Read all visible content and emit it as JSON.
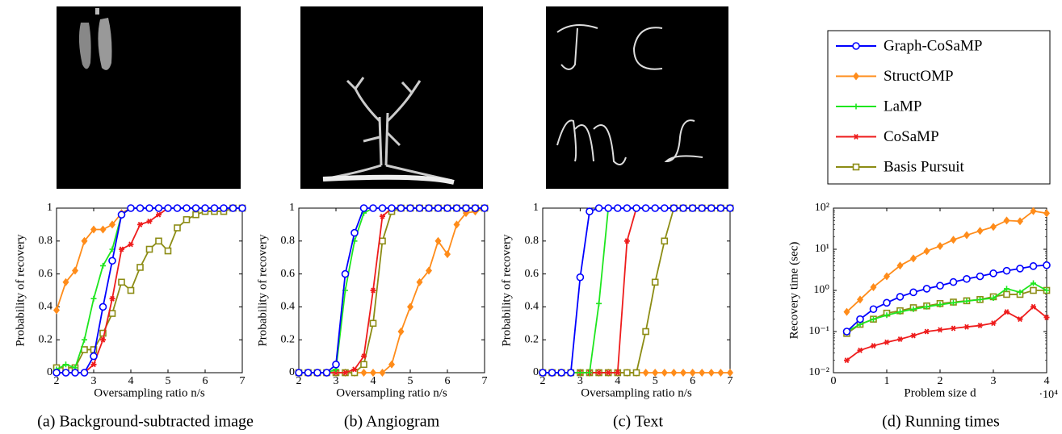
{
  "chart_data": [
    {
      "type": "line",
      "caption": "(a) Background-subtracted image",
      "xlabel": "Oversampling ratio n/s",
      "ylabel": "Probability of recovery",
      "xlim": [
        2,
        7
      ],
      "ylim": [
        0,
        1
      ],
      "xticks": [
        2,
        3,
        4,
        5,
        6,
        7
      ],
      "yticks": [
        0,
        0.2,
        0.4,
        0.6,
        0.8,
        1
      ],
      "x": [
        2,
        2.25,
        2.5,
        2.75,
        3,
        3.25,
        3.5,
        3.75,
        4,
        4.25,
        4.5,
        4.75,
        5,
        5.25,
        5.5,
        5.75,
        6,
        6.25,
        6.5,
        6.75,
        7
      ],
      "series": [
        {
          "name": "Graph-CoSaMP",
          "color": "#0000ff",
          "marker": "circle",
          "values": [
            0,
            0,
            0,
            0,
            0.1,
            0.4,
            0.68,
            0.96,
            1,
            1,
            1,
            1,
            1,
            1,
            1,
            1,
            1,
            1,
            1,
            1,
            1
          ]
        },
        {
          "name": "StructOMP",
          "color": "#ff8c1a",
          "marker": "diamond",
          "values": [
            0.38,
            0.55,
            0.62,
            0.8,
            0.87,
            0.87,
            0.9,
            0.97,
            1,
            1,
            1,
            1,
            1,
            1,
            1,
            1,
            1,
            1,
            1,
            1,
            1
          ]
        },
        {
          "name": "LaMP",
          "color": "#1ee61e",
          "marker": "plus",
          "values": [
            0.02,
            0.05,
            0.03,
            0.2,
            0.45,
            0.65,
            0.75,
            0.96,
            1,
            1,
            1,
            1,
            1,
            1,
            1,
            1,
            1,
            1,
            1,
            1,
            1
          ]
        },
        {
          "name": "CoSaMP",
          "color": "#ee1c1c",
          "marker": "star",
          "values": [
            0,
            0,
            0,
            0,
            0.05,
            0.2,
            0.45,
            0.75,
            0.78,
            0.9,
            0.92,
            0.96,
            1,
            1,
            1,
            1,
            1,
            1,
            1,
            1,
            1
          ]
        },
        {
          "name": "Basis Pursuit",
          "color": "#8c8c14",
          "marker": "square",
          "values": [
            0.03,
            0.03,
            0.03,
            0.14,
            0.14,
            0.24,
            0.36,
            0.55,
            0.5,
            0.64,
            0.75,
            0.8,
            0.74,
            0.88,
            0.93,
            0.96,
            0.98,
            0.98,
            0.98,
            1,
            1
          ]
        }
      ]
    },
    {
      "type": "line",
      "caption": "(b) Angiogram",
      "xlabel": "Oversampling ratio n/s",
      "ylabel": "Probability of recovery",
      "xlim": [
        2,
        7
      ],
      "ylim": [
        0,
        1
      ],
      "xticks": [
        2,
        3,
        4,
        5,
        6,
        7
      ],
      "yticks": [
        0,
        0.2,
        0.4,
        0.6,
        0.8,
        1
      ],
      "x": [
        2,
        2.25,
        2.5,
        2.75,
        3,
        3.25,
        3.5,
        3.75,
        4,
        4.25,
        4.5,
        4.75,
        5,
        5.25,
        5.5,
        5.75,
        6,
        6.25,
        6.5,
        6.75,
        7
      ],
      "series": [
        {
          "name": "Graph-CoSaMP",
          "color": "#0000ff",
          "marker": "circle",
          "values": [
            0,
            0,
            0,
            0,
            0.05,
            0.6,
            0.85,
            1,
            1,
            1,
            1,
            1,
            1,
            1,
            1,
            1,
            1,
            1,
            1,
            1,
            1
          ]
        },
        {
          "name": "StructOMP",
          "color": "#ff8c1a",
          "marker": "diamond",
          "values": [
            0,
            0,
            0,
            0,
            0,
            0,
            0,
            0,
            0,
            0,
            0.05,
            0.25,
            0.4,
            0.55,
            0.62,
            0.8,
            0.72,
            0.9,
            0.97,
            0.98,
            1
          ]
        },
        {
          "name": "LaMP",
          "color": "#1ee61e",
          "marker": "plus",
          "values": [
            0,
            0,
            0,
            0,
            0.02,
            0.5,
            0.8,
            0.97,
            1,
            1,
            1,
            1,
            1,
            1,
            1,
            1,
            1,
            1,
            1,
            1,
            1
          ]
        },
        {
          "name": "CoSaMP",
          "color": "#ee1c1c",
          "marker": "star",
          "values": [
            0,
            0,
            0,
            0,
            0,
            0,
            0.02,
            0.1,
            0.5,
            0.95,
            1,
            1,
            1,
            1,
            1,
            1,
            1,
            1,
            1,
            1,
            1
          ]
        },
        {
          "name": "Basis Pursuit",
          "color": "#8c8c14",
          "marker": "square",
          "values": [
            0,
            0,
            0,
            0,
            0,
            0,
            0,
            0.05,
            0.3,
            0.8,
            0.98,
            1,
            1,
            1,
            1,
            1,
            1,
            1,
            1,
            1,
            1
          ]
        }
      ]
    },
    {
      "type": "line",
      "caption": "(c) Text",
      "xlabel": "Oversampling ratio n/s",
      "ylabel": "Probability of recovery",
      "xlim": [
        2,
        7
      ],
      "ylim": [
        0,
        1
      ],
      "xticks": [
        2,
        3,
        4,
        5,
        6,
        7
      ],
      "yticks": [
        0,
        0.2,
        0.4,
        0.6,
        0.8,
        1
      ],
      "x": [
        2,
        2.25,
        2.5,
        2.75,
        3,
        3.25,
        3.5,
        3.75,
        4,
        4.25,
        4.5,
        4.75,
        5,
        5.25,
        5.5,
        5.75,
        6,
        6.25,
        6.5,
        6.75,
        7
      ],
      "series": [
        {
          "name": "Graph-CoSaMP",
          "color": "#0000ff",
          "marker": "circle",
          "values": [
            0,
            0,
            0,
            0,
            0.58,
            0.98,
            1,
            1,
            1,
            1,
            1,
            1,
            1,
            1,
            1,
            1,
            1,
            1,
            1,
            1,
            1
          ]
        },
        {
          "name": "StructOMP",
          "color": "#ff8c1a",
          "marker": "diamond",
          "values": [
            0,
            0,
            0,
            0,
            0,
            0,
            0,
            0,
            0,
            0,
            0,
            0,
            0,
            0,
            0,
            0,
            0,
            0,
            0,
            0,
            0
          ]
        },
        {
          "name": "LaMP",
          "color": "#1ee61e",
          "marker": "plus",
          "values": [
            0,
            0,
            0,
            0,
            0,
            0,
            0.42,
            1,
            1,
            1,
            1,
            1,
            1,
            1,
            1,
            1,
            1,
            1,
            1,
            1,
            1
          ]
        },
        {
          "name": "CoSaMP",
          "color": "#ee1c1c",
          "marker": "star",
          "values": [
            0,
            0,
            0,
            0,
            0,
            0,
            0,
            0,
            0,
            0.8,
            1,
            1,
            1,
            1,
            1,
            1,
            1,
            1,
            1,
            1,
            1
          ]
        },
        {
          "name": "Basis Pursuit",
          "color": "#8c8c14",
          "marker": "square",
          "values": [
            0,
            0,
            0,
            0,
            0,
            0,
            0,
            0,
            0,
            0,
            0,
            0.25,
            0.55,
            0.8,
            1,
            1,
            1,
            1,
            1,
            1,
            1
          ]
        }
      ]
    },
    {
      "type": "line",
      "caption": "(d) Running times",
      "xlabel": "Problem size d",
      "ylabel": "Recovery time (sec)",
      "log_y": true,
      "xlim": [
        0,
        40000
      ],
      "ylim": [
        0.01,
        100
      ],
      "xticks": [
        0,
        {
          "value": 10000,
          "label": "1"
        },
        {
          "value": 20000,
          "label": "2"
        },
        {
          "value": 30000,
          "label": "3"
        },
        {
          "value": 40000,
          "label": "4"
        }
      ],
      "x_multiplier": "·10⁴",
      "yticks": [
        {
          "value": 0.01,
          "label": "10⁻²"
        },
        {
          "value": 0.1,
          "label": "10⁻¹"
        },
        {
          "value": 1,
          "label": "10⁰"
        },
        {
          "value": 10,
          "label": "10¹"
        },
        {
          "value": 100,
          "label": "10²"
        }
      ],
      "x": [
        2500,
        5000,
        7500,
        10000,
        12500,
        15000,
        17500,
        20000,
        22500,
        25000,
        27500,
        30000,
        32500,
        35000,
        37500,
        40000
      ],
      "series": [
        {
          "name": "Graph-CoSaMP",
          "color": "#0000ff",
          "marker": "circle",
          "values": [
            0.1,
            0.2,
            0.35,
            0.5,
            0.7,
            0.9,
            1.1,
            1.3,
            1.6,
            1.9,
            2.2,
            2.6,
            3.0,
            3.4,
            3.9,
            4.1
          ]
        },
        {
          "name": "StructOMP",
          "color": "#ff8c1a",
          "marker": "diamond",
          "values": [
            0.3,
            0.6,
            1.2,
            2.2,
            4,
            6,
            9,
            12,
            17,
            22,
            28,
            35,
            50,
            48,
            85,
            75
          ]
        },
        {
          "name": "LaMP",
          "color": "#1ee61e",
          "marker": "plus",
          "values": [
            0.1,
            0.15,
            0.2,
            0.25,
            0.3,
            0.35,
            0.4,
            0.45,
            0.5,
            0.55,
            0.6,
            0.65,
            1.1,
            0.9,
            1.5,
            1.0
          ]
        },
        {
          "name": "CoSaMP",
          "color": "#ee1c1c",
          "marker": "star",
          "values": [
            0.02,
            0.035,
            0.045,
            0.055,
            0.065,
            0.08,
            0.1,
            0.11,
            0.12,
            0.13,
            0.14,
            0.16,
            0.3,
            0.2,
            0.4,
            0.22
          ]
        },
        {
          "name": "Basis Pursuit",
          "color": "#8c8c14",
          "marker": "square",
          "values": [
            0.09,
            0.15,
            0.2,
            0.28,
            0.32,
            0.38,
            0.42,
            0.48,
            0.52,
            0.56,
            0.6,
            0.7,
            0.8,
            0.8,
            1.0,
            1.0
          ]
        }
      ]
    }
  ]
}
